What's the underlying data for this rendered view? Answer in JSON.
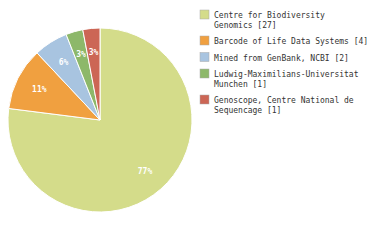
{
  "chart_data": {
    "type": "pie",
    "categories": [
      "Centre for Biodiversity\nGenomics [27]",
      "Barcode of Life Data Systems [4]",
      "Mined from GenBank, NCBI [2]",
      "Ludwig-Maximilians-Universitat\nMunchen [1]",
      "Genoscope, Centre National de\nSequencage [1]"
    ],
    "values": [
      77,
      11,
      6,
      3,
      3
    ],
    "value_labels": [
      "77%",
      "11%",
      "6%",
      "3%",
      "3%"
    ],
    "colors": [
      "#d4dc8a",
      "#f0a040",
      "#a8c4e0",
      "#8db86a",
      "#cc6655"
    ],
    "data_labels": true,
    "legend": "right"
  }
}
